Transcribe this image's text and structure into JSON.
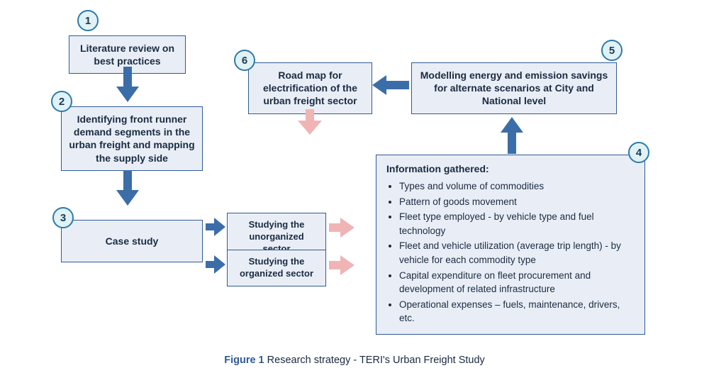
{
  "type": "flowchart",
  "background_color": "#ffffff",
  "box_fill": "#e9eef6",
  "box_border": "#2f5b95",
  "badge_fill": "#e0f2f5",
  "badge_border": "#2f7aa8",
  "arrow_blue": "#3b6ea8",
  "arrow_pink": "#f0b4b4",
  "text_color": "#1a2b42",
  "nodes": {
    "n1": {
      "num": "1",
      "text": "Literature review\non best practices"
    },
    "n2": {
      "num": "2",
      "text": "Identifying front runner demand segments in the urban freight and mapping the supply side"
    },
    "n3": {
      "num": "3",
      "text": "Case study"
    },
    "n3a": {
      "text": "Studying the unorganized sector"
    },
    "n3b": {
      "text": "Studying the organized sector"
    },
    "n4": {
      "num": "4",
      "title": "Information gathered:",
      "bullets": [
        "Types and volume of commodities",
        "Pattern of goods movement",
        "Fleet type employed - by vehicle type and fuel technology",
        "Fleet and vehicle utilization (average trip length) - by vehicle for each commodity type",
        "Capital expenditure on fleet procurement and development of related infrastructure",
        "Operational expenses – fuels, maintenance, drivers, etc."
      ]
    },
    "n5": {
      "num": "5",
      "text": "Modelling energy and emission savings for alternate scenarios at City and National level"
    },
    "n6": {
      "num": "6",
      "text": "Road map for electrification of the urban freight sector"
    }
  },
  "caption": {
    "label": "Figure 1",
    "text": "Research strategy - TERI's Urban Freight Study"
  }
}
